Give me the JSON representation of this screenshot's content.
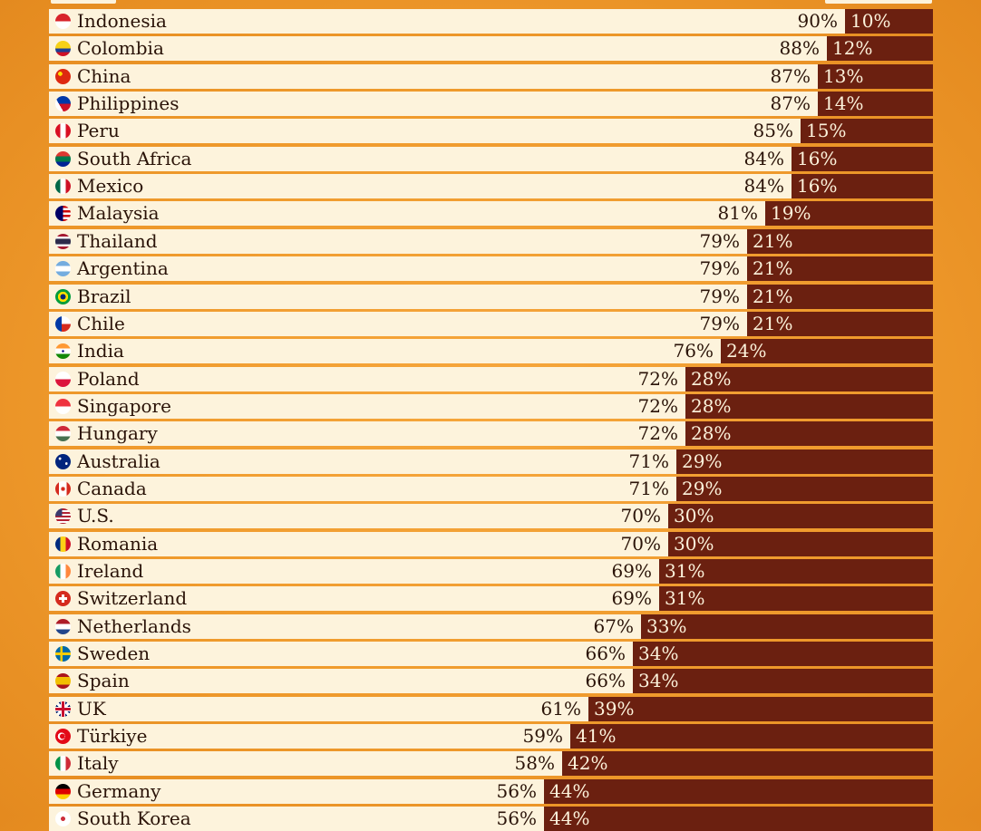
{
  "colors": {
    "agree": "#fdf3dc",
    "disagree": "#6b2010",
    "background": "#f29f33"
  },
  "chart_data": {
    "type": "bar",
    "stacked": true,
    "orientation": "horizontal",
    "categories": [
      "Indonesia",
      "Colombia",
      "China",
      "Philippines",
      "Peru",
      "South Africa",
      "Mexico",
      "Malaysia",
      "Thailand",
      "Argentina",
      "Brazil",
      "Chile",
      "India",
      "Poland",
      "Singapore",
      "Hungary",
      "Australia",
      "Canada",
      "U.S.",
      "Romania",
      "Ireland",
      "Switzerland",
      "Netherlands",
      "Sweden",
      "Spain",
      "UK",
      "Türkiye",
      "Italy",
      "Germany",
      "South Korea"
    ],
    "series": [
      {
        "values": [
          90,
          88,
          87,
          87,
          85,
          84,
          84,
          81,
          79,
          79,
          79,
          79,
          76,
          72,
          72,
          72,
          71,
          71,
          70,
          70,
          69,
          69,
          67,
          66,
          66,
          61,
          59,
          58,
          56,
          56
        ]
      },
      {
        "values": [
          10,
          12,
          13,
          14,
          15,
          16,
          16,
          19,
          21,
          21,
          21,
          21,
          24,
          28,
          28,
          28,
          29,
          29,
          30,
          30,
          31,
          31,
          33,
          34,
          34,
          39,
          41,
          42,
          44,
          44
        ]
      }
    ],
    "value_labels": [
      [
        "90%",
        "10%"
      ],
      [
        "88%",
        "12%"
      ],
      [
        "87%",
        "13%"
      ],
      [
        "87%",
        "14%"
      ],
      [
        "85%",
        "15%"
      ],
      [
        "84%",
        "16%"
      ],
      [
        "84%",
        "16%"
      ],
      [
        "81%",
        "19%"
      ],
      [
        "79%",
        "21%"
      ],
      [
        "79%",
        "21%"
      ],
      [
        "79%",
        "21%"
      ],
      [
        "79%",
        "21%"
      ],
      [
        "76%",
        "24%"
      ],
      [
        "72%",
        "28%"
      ],
      [
        "72%",
        "28%"
      ],
      [
        "72%",
        "28%"
      ],
      [
        "71%",
        "29%"
      ],
      [
        "71%",
        "29%"
      ],
      [
        "70%",
        "30%"
      ],
      [
        "70%",
        "30%"
      ],
      [
        "69%",
        "31%"
      ],
      [
        "69%",
        "31%"
      ],
      [
        "67%",
        "33%"
      ],
      [
        "66%",
        "34%"
      ],
      [
        "66%",
        "34%"
      ],
      [
        "61%",
        "39%"
      ],
      [
        "59%",
        "41%"
      ],
      [
        "58%",
        "42%"
      ],
      [
        "56%",
        "44%"
      ],
      [
        "56%",
        "44%"
      ]
    ],
    "flags": [
      "indonesia-flag-icon",
      "colombia-flag-icon",
      "china-flag-icon",
      "philippines-flag-icon",
      "peru-flag-icon",
      "south-africa-flag-icon",
      "mexico-flag-icon",
      "malaysia-flag-icon",
      "thailand-flag-icon",
      "argentina-flag-icon",
      "brazil-flag-icon",
      "chile-flag-icon",
      "india-flag-icon",
      "poland-flag-icon",
      "singapore-flag-icon",
      "hungary-flag-icon",
      "australia-flag-icon",
      "canada-flag-icon",
      "us-flag-icon",
      "romania-flag-icon",
      "ireland-flag-icon",
      "switzerland-flag-icon",
      "netherlands-flag-icon",
      "sweden-flag-icon",
      "spain-flag-icon",
      "uk-flag-icon",
      "turkiye-flag-icon",
      "italy-flag-icon",
      "germany-flag-icon",
      "south-korea-flag-icon"
    ]
  }
}
